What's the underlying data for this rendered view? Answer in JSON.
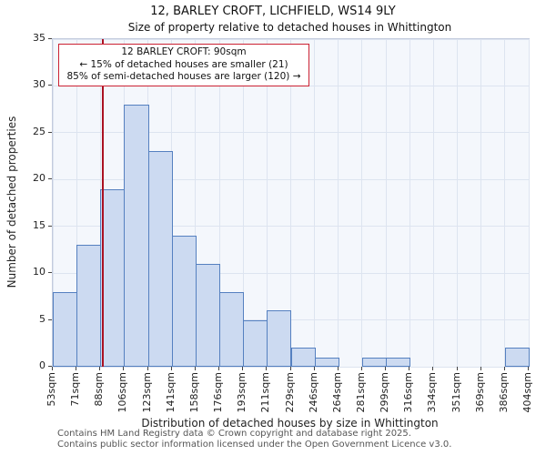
{
  "chart_data": {
    "type": "bar",
    "title": "12, BARLEY CROFT, LICHFIELD, WS14 9LY",
    "subtitle": "Size of property relative to detached houses in Whittington",
    "xlabel": "Distribution of detached houses by size in Whittington",
    "ylabel": "Number of detached properties",
    "bin_edges_sqm": [
      53,
      71,
      88,
      106,
      123,
      141,
      158,
      176,
      193,
      211,
      229,
      246,
      264,
      281,
      299,
      316,
      334,
      351,
      369,
      386,
      404
    ],
    "categories": [
      "53sqm",
      "71sqm",
      "88sqm",
      "106sqm",
      "123sqm",
      "141sqm",
      "158sqm",
      "176sqm",
      "193sqm",
      "211sqm",
      "229sqm",
      "246sqm",
      "264sqm",
      "281sqm",
      "299sqm",
      "316sqm",
      "334sqm",
      "351sqm",
      "369sqm",
      "386sqm",
      "404sqm"
    ],
    "values": [
      8,
      13,
      19,
      28,
      23,
      14,
      11,
      8,
      5,
      6,
      2,
      1,
      0,
      1,
      1,
      0,
      0,
      0,
      0,
      2
    ],
    "ylim": [
      0,
      35
    ],
    "yticks": [
      0,
      5,
      10,
      15,
      20,
      25,
      30,
      35
    ],
    "grid": true,
    "legend": "none",
    "marker": {
      "label": "12 BARLEY CROFT",
      "value_sqm": 90,
      "color": "#aa1122"
    },
    "colors": {
      "bar_fill": "#ccdaf1",
      "bar_border": "#5580c0",
      "plot_bg": "#f4f7fc",
      "grid": "#dde4f0",
      "annotation_border": "#cc2233"
    }
  },
  "annotation": {
    "line1": "12 BARLEY CROFT: 90sqm",
    "line2": "← 15% of detached houses are smaller (21)",
    "line3": "85% of semi-detached houses are larger (120) →"
  },
  "footer": {
    "line1": "Contains HM Land Registry data © Crown copyright and database right 2025.",
    "line2": "Contains public sector information licensed under the Open Government Licence v3.0."
  }
}
